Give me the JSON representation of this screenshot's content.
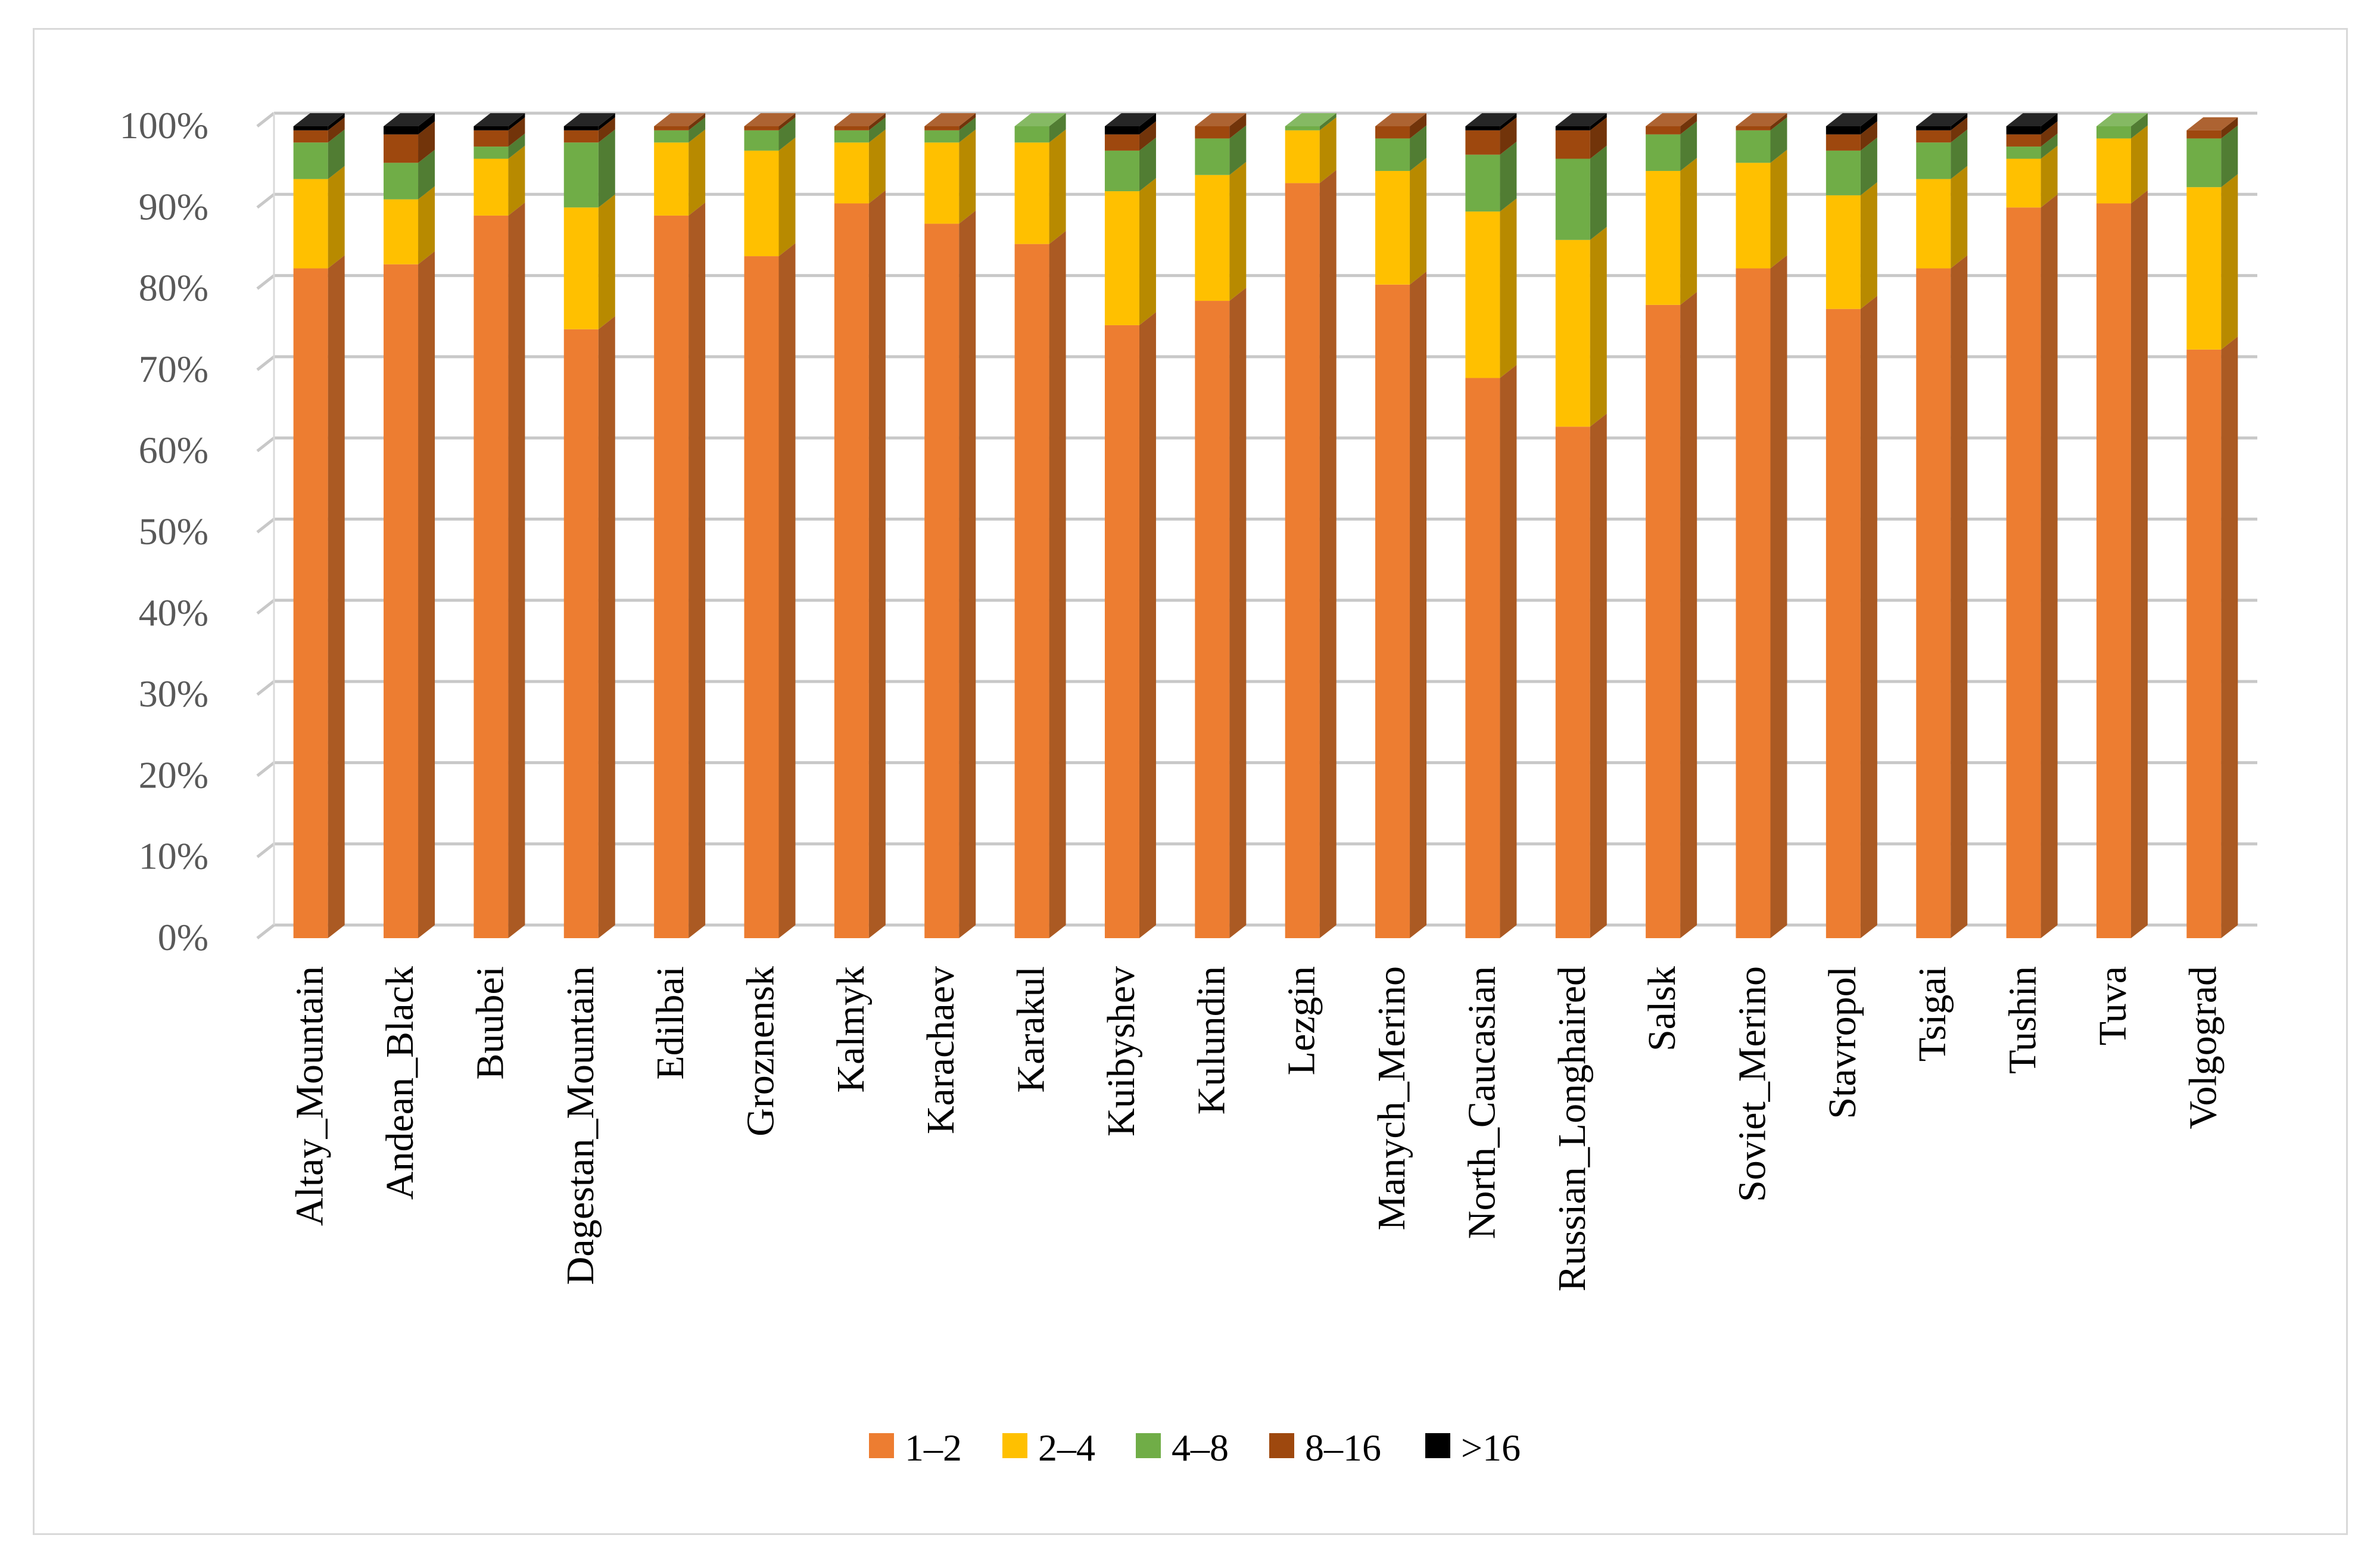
{
  "chart_data": {
    "type": "bar",
    "stacked": true,
    "percent_stacked": true,
    "three_d": true,
    "title": "",
    "xlabel": "",
    "ylabel": "",
    "ylim": [
      0,
      100
    ],
    "y_ticks": [
      "0%",
      "10%",
      "20%",
      "30%",
      "40%",
      "50%",
      "60%",
      "70%",
      "80%",
      "90%",
      "100%"
    ],
    "grid": true,
    "legend_position": "bottom",
    "categories": [
      "Altay_Mountain",
      "Andean_Black",
      "Buubei",
      "Dagestan_Mountain",
      "Edilbai",
      "Groznensk",
      "Kalmyk",
      "Karachaev",
      "Karakul",
      "Kuibyshev",
      "Kulundin",
      "Lezgin",
      "Manych_Merino",
      "North_Caucasian",
      "Russian_Longhaired",
      "Salsk",
      "Soviet_Merino",
      "Stavropol",
      "Tsigai",
      "Tushin",
      "Tuva",
      "Volgograd"
    ],
    "series": [
      {
        "name": "1–2",
        "color": "#ED7D31",
        "values": [
          82.5,
          83.0,
          89.0,
          75.0,
          89.0,
          84.0,
          90.5,
          88.0,
          85.5,
          75.5,
          78.5,
          93.0,
          80.5,
          69.0,
          63.0,
          78.0,
          82.5,
          77.5,
          82.5,
          90.0,
          90.5,
          72.5
        ]
      },
      {
        "name": "2–4",
        "color": "#FFC000",
        "values": [
          11.0,
          8.0,
          7.0,
          15.0,
          9.0,
          13.0,
          7.5,
          10.0,
          12.5,
          16.5,
          15.5,
          6.5,
          14.0,
          20.5,
          23.0,
          16.5,
          13.0,
          14.0,
          11.0,
          6.0,
          8.0,
          20.0
        ]
      },
      {
        "name": "4–8",
        "color": "#70AD47",
        "values": [
          4.5,
          4.5,
          1.5,
          8.0,
          1.5,
          2.5,
          1.5,
          1.5,
          2.0,
          5.0,
          4.5,
          0.5,
          4.0,
          7.0,
          10.0,
          4.5,
          4.0,
          5.5,
          4.5,
          1.5,
          1.5,
          6.0
        ]
      },
      {
        "name": "8–16",
        "color": "#9E480E",
        "values": [
          1.5,
          3.5,
          2.0,
          1.5,
          0.5,
          0.5,
          0.5,
          0.5,
          0.0,
          2.0,
          1.5,
          0.0,
          1.5,
          3.0,
          3.5,
          1.0,
          0.5,
          2.0,
          1.5,
          1.5,
          0.0,
          1.0
        ]
      },
      {
        "name": ">16",
        "color": "#000000",
        "values": [
          0.5,
          1.0,
          0.5,
          0.5,
          0.0,
          0.0,
          0.0,
          0.0,
          0.0,
          1.0,
          0.0,
          0.0,
          0.0,
          0.5,
          0.5,
          0.0,
          0.0,
          1.0,
          0.5,
          1.0,
          0.0,
          0.0
        ]
      }
    ]
  }
}
